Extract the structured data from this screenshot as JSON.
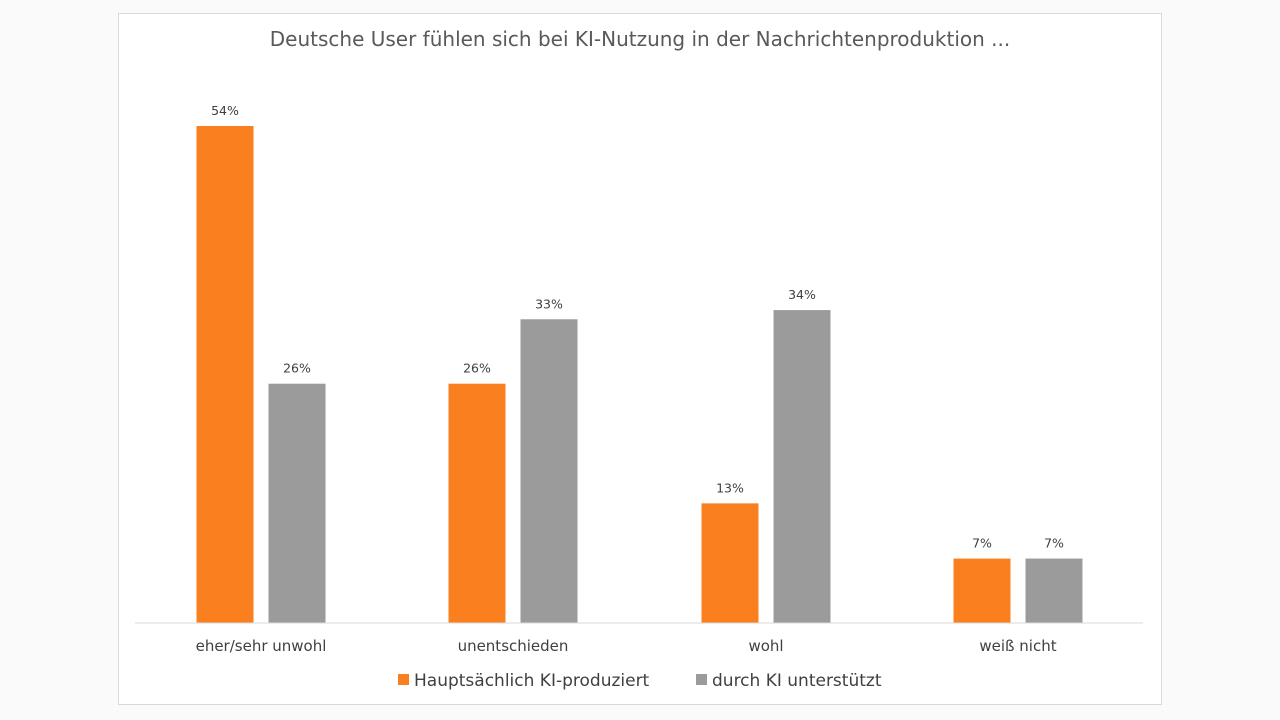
{
  "chart_data": {
    "type": "bar",
    "title": "Deutsche User fühlen sich bei KI-Nutzung in der Nachrichtenproduktion ...",
    "categories": [
      "eher/sehr unwohl",
      "unentschieden",
      "wohl",
      "weiß nicht"
    ],
    "series": [
      {
        "name": "Hauptsächlich KI-produziert",
        "color": "#FA7F1E",
        "values": [
          54,
          26,
          13,
          7
        ]
      },
      {
        "name": "durch KI unterstützt",
        "color": "#9B9B9B",
        "values": [
          26,
          33,
          34,
          7
        ]
      }
    ],
    "value_format": "percent",
    "ylim": [
      0,
      54
    ],
    "grid": false,
    "y_axis_visible": false,
    "legend": "bottom"
  }
}
